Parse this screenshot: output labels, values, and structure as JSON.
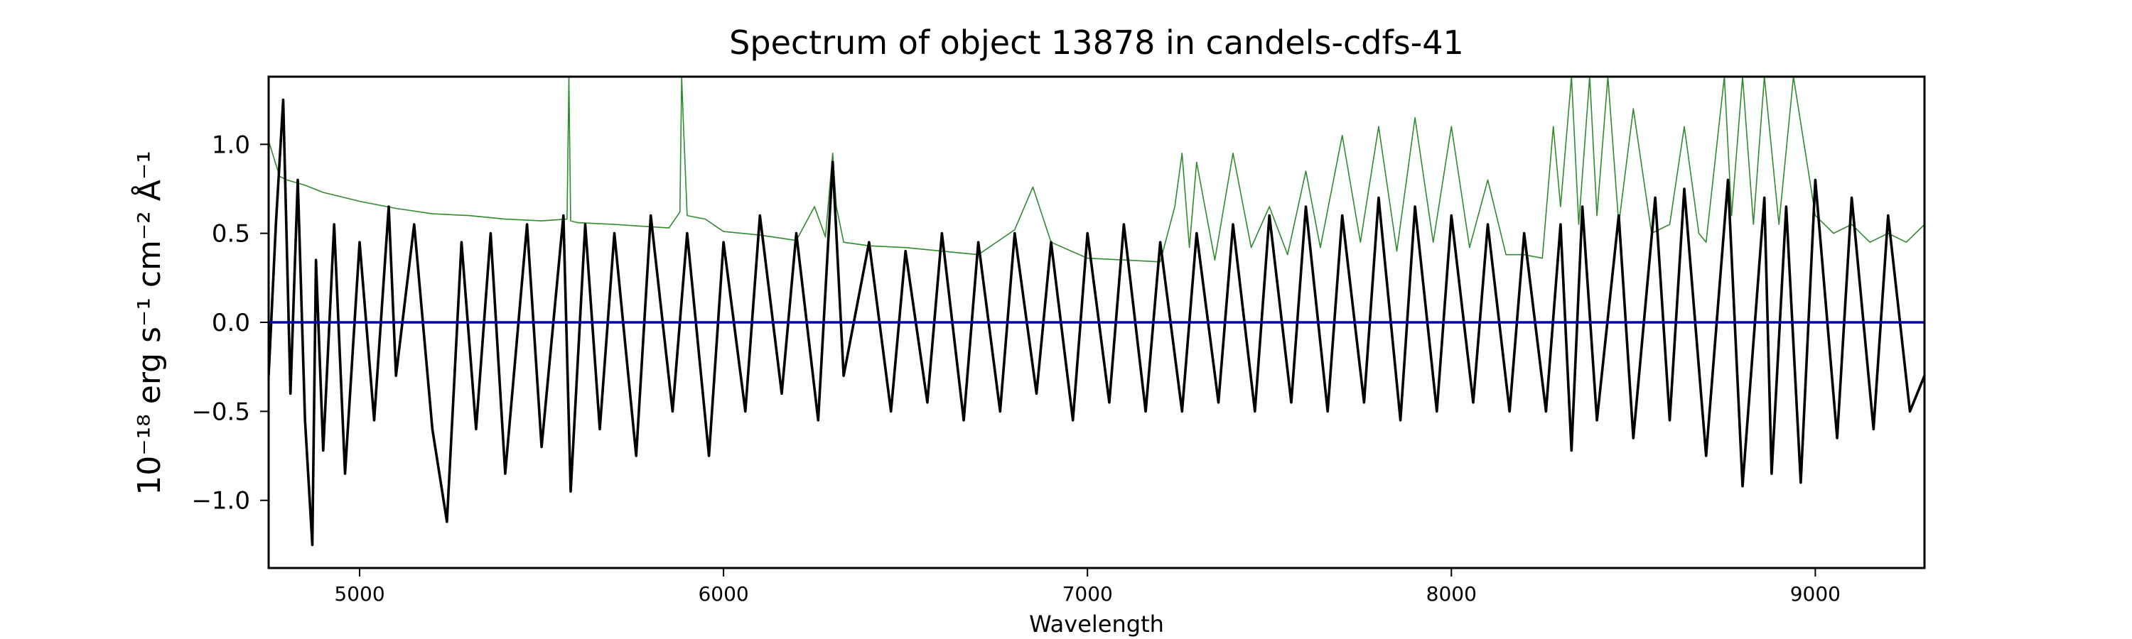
{
  "chart_data": {
    "type": "line",
    "title": "Spectrum of object 13878 in candels-cdfs-41",
    "xlabel": "Wavelength",
    "ylabel": "10⁻¹⁸ erg s⁻¹ cm⁻² Å⁻¹",
    "xlim": [
      4750,
      9300
    ],
    "ylim": [
      -1.38,
      1.38
    ],
    "x_ticks": [
      5000,
      6000,
      7000,
      8000,
      9000
    ],
    "y_ticks": [
      -1.0,
      -0.5,
      0.0,
      0.5,
      1.0
    ],
    "y_tick_labels": [
      "−1.0",
      "−0.5",
      "0.0",
      "0.5",
      "1.0"
    ],
    "grid": false,
    "series": [
      {
        "role": "flux",
        "color": "#000000",
        "x": [
          4750,
          4770,
          4790,
          4810,
          4830,
          4850,
          4870,
          4880,
          4900,
          4930,
          4960,
          5000,
          5040,
          5080,
          5100,
          5150,
          5200,
          5240,
          5280,
          5320,
          5360,
          5400,
          5460,
          5500,
          5560,
          5580,
          5620,
          5660,
          5700,
          5760,
          5800,
          5860,
          5900,
          5960,
          6000,
          6060,
          6100,
          6160,
          6200,
          6260,
          6300,
          6330,
          6400,
          6460,
          6500,
          6560,
          6600,
          6660,
          6700,
          6760,
          6800,
          6860,
          6900,
          6960,
          7000,
          7060,
          7100,
          7160,
          7200,
          7260,
          7300,
          7360,
          7400,
          7460,
          7500,
          7560,
          7600,
          7660,
          7700,
          7760,
          7800,
          7860,
          7900,
          7960,
          8000,
          8060,
          8100,
          8160,
          8200,
          8260,
          8300,
          8330,
          8360,
          8400,
          8460,
          8500,
          8560,
          8600,
          8640,
          8700,
          8760,
          8800,
          8860,
          8880,
          8920,
          8960,
          9000,
          9060,
          9100,
          9160,
          9200,
          9260,
          9300
        ],
        "y": [
          -0.3,
          0.55,
          1.25,
          -0.4,
          0.8,
          -0.55,
          -1.25,
          0.35,
          -0.72,
          0.55,
          -0.85,
          0.45,
          -0.55,
          0.65,
          -0.3,
          0.55,
          -0.6,
          -1.12,
          0.45,
          -0.6,
          0.5,
          -0.85,
          0.55,
          -0.7,
          0.6,
          -0.95,
          0.55,
          -0.6,
          0.5,
          -0.75,
          0.6,
          -0.5,
          0.5,
          -0.75,
          0.45,
          -0.5,
          0.6,
          -0.4,
          0.5,
          -0.55,
          0.9,
          -0.3,
          0.45,
          -0.5,
          0.4,
          -0.45,
          0.5,
          -0.55,
          0.45,
          -0.5,
          0.5,
          -0.4,
          0.45,
          -0.55,
          0.5,
          -0.45,
          0.55,
          -0.5,
          0.45,
          -0.5,
          0.5,
          -0.45,
          0.55,
          -0.5,
          0.6,
          -0.45,
          0.65,
          -0.5,
          0.6,
          -0.45,
          0.7,
          -0.55,
          0.65,
          -0.5,
          0.6,
          -0.45,
          0.55,
          -0.5,
          0.5,
          -0.5,
          0.55,
          -0.72,
          0.65,
          -0.55,
          0.6,
          -0.65,
          0.7,
          -0.55,
          0.75,
          -0.75,
          0.8,
          -0.92,
          0.7,
          -0.85,
          0.65,
          -0.9,
          0.8,
          -0.65,
          0.7,
          -0.6,
          0.6,
          -0.5,
          -0.3
        ]
      },
      {
        "role": "model",
        "color": "#2e8b2e",
        "x": [
          4750,
          4780,
          4800,
          4850,
          4900,
          5000,
          5100,
          5200,
          5300,
          5400,
          5500,
          5570,
          5575,
          5580,
          5600,
          5700,
          5850,
          5880,
          5885,
          5890,
          5900,
          5950,
          6000,
          6100,
          6200,
          6250,
          6280,
          6300,
          6310,
          6330,
          6400,
          6500,
          6600,
          6700,
          6800,
          6850,
          6900,
          7000,
          7100,
          7200,
          7240,
          7260,
          7280,
          7300,
          7350,
          7400,
          7450,
          7500,
          7550,
          7600,
          7640,
          7700,
          7750,
          7800,
          7850,
          7900,
          7950,
          8000,
          8050,
          8100,
          8150,
          8200,
          8250,
          8280,
          8300,
          8330,
          8350,
          8380,
          8400,
          8430,
          8460,
          8500,
          8550,
          8600,
          8640,
          8680,
          8700,
          8750,
          8770,
          8800,
          8830,
          8860,
          8900,
          8940,
          9000,
          9050,
          9100,
          9150,
          9200,
          9250,
          9300
        ],
        "y": [
          1.02,
          0.82,
          0.8,
          0.77,
          0.73,
          0.68,
          0.64,
          0.61,
          0.6,
          0.58,
          0.57,
          0.58,
          1.38,
          0.57,
          0.56,
          0.55,
          0.53,
          0.62,
          1.38,
          1.1,
          0.6,
          0.58,
          0.51,
          0.49,
          0.46,
          0.65,
          0.48,
          0.95,
          0.65,
          0.45,
          0.43,
          0.42,
          0.4,
          0.38,
          0.52,
          0.76,
          0.45,
          0.36,
          0.35,
          0.34,
          0.65,
          0.95,
          0.42,
          0.9,
          0.35,
          0.95,
          0.42,
          0.65,
          0.38,
          0.85,
          0.42,
          1.05,
          0.45,
          1.1,
          0.4,
          1.15,
          0.45,
          1.1,
          0.42,
          0.8,
          0.38,
          0.38,
          0.36,
          1.1,
          0.65,
          1.38,
          0.55,
          1.38,
          0.6,
          1.38,
          0.55,
          1.2,
          0.5,
          0.55,
          1.1,
          0.5,
          0.45,
          1.38,
          0.6,
          1.38,
          0.55,
          1.38,
          0.55,
          1.38,
          0.6,
          0.5,
          0.55,
          0.45,
          0.5,
          0.45,
          0.55
        ]
      },
      {
        "role": "zero",
        "color": "#0000bb",
        "x": [
          4750,
          9300
        ],
        "y": [
          0.0,
          0.0
        ]
      }
    ]
  }
}
